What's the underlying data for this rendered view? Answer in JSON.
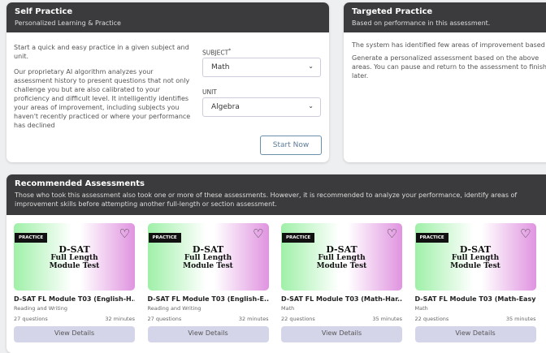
{
  "self_practice": {
    "title": "Self Practice",
    "subtitle": "Personalized Learning & Practice",
    "intro": "Start a quick and easy practice in a given subject and unit.",
    "description": "Our proprietary AI algorithm analyzes your assessment history to present questions that not only challenge you but are also calibrated to your proficiency and difficult level. It intelligently identifies your areas of improvement, including subjects you haven't recently practiced or where your performance has declined",
    "subject_label": "SUBJECT",
    "required_mark": "*",
    "subject_value": "Math",
    "unit_label": "UNIT",
    "unit_value": "Algebra",
    "start_button": "Start Now"
  },
  "targeted_practice": {
    "title": "Targeted Practice",
    "subtitle": "Based on performance in this assessment.",
    "line1": "The system has identified few areas of improvement based",
    "line2": "Generate a personalized assessment based on the above areas. You can pause and return to the assessment to finish later."
  },
  "recommended": {
    "title": "Recommended Assessments",
    "subtitle": "Those who took this assessment also took one or more of these assessments. However, it is recommended to analyze your performance, identify areas of improvement skills before attempting another full-length or section assessment.",
    "cards": [
      {
        "badge": "PRACTICE",
        "image_line1": "D-SAT",
        "image_line2": "Full Length",
        "image_line3": "Module Test",
        "title": "D-SAT FL Module T03 (English-H...",
        "subject": "Reading and Writing",
        "questions": "27 questions",
        "duration": "32 minutes",
        "button": "View Details"
      },
      {
        "badge": "PRACTICE",
        "image_line1": "D-SAT",
        "image_line2": "Full Length",
        "image_line3": "Module Test",
        "title": "D-SAT FL Module T03 (English-E...",
        "subject": "Reading and Writing",
        "questions": "27 questions",
        "duration": "32 minutes",
        "button": "View Details"
      },
      {
        "badge": "PRACTICE",
        "image_line1": "D-SAT",
        "image_line2": "Full Length",
        "image_line3": "Module Test",
        "title": "D-SAT FL Module T03 (Math-Har...",
        "subject": "Math",
        "questions": "22 questions",
        "duration": "35 minutes",
        "button": "View Details"
      },
      {
        "badge": "PRACTICE",
        "image_line1": "D-SAT",
        "image_line2": "Full Length",
        "image_line3": "Module Test",
        "title": "D-SAT FL Module T03 (Math-Easy)",
        "subject": "Math",
        "questions": "22 questions",
        "duration": "35 minutes",
        "button": "View Details"
      }
    ]
  }
}
